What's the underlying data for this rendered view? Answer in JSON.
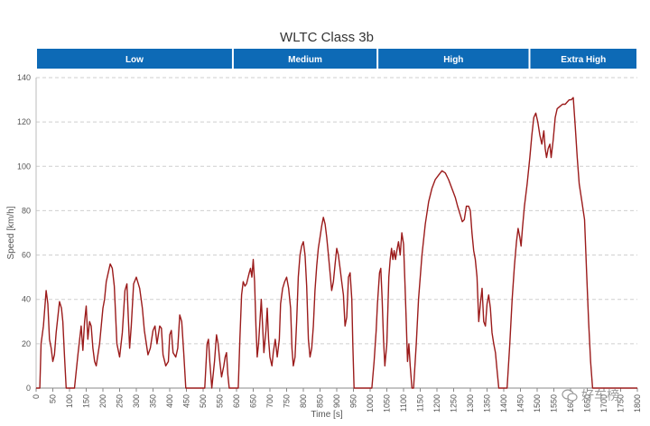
{
  "chart_data": {
    "type": "line",
    "title": "WLTC Class 3b",
    "xlabel": "Time [s]",
    "ylabel": "Speed [km/h]",
    "xlim": [
      0,
      1800
    ],
    "ylim": [
      0,
      140
    ],
    "grid": true,
    "colors": {
      "line": "#9b1b1b",
      "phase_bar": "#0d6ab6",
      "grid": "#cfcfcf",
      "axis_text": "#555555"
    },
    "x_ticks": [
      0,
      50,
      100,
      150,
      200,
      250,
      300,
      350,
      400,
      450,
      500,
      550,
      600,
      650,
      700,
      750,
      800,
      850,
      900,
      950,
      1000,
      1050,
      1100,
      1150,
      1200,
      1250,
      1300,
      1350,
      1400,
      1450,
      1500,
      1550,
      1600,
      1650,
      1700,
      1750,
      1800
    ],
    "y_ticks": [
      0,
      20,
      40,
      60,
      80,
      100,
      120,
      140
    ],
    "phases": [
      {
        "name": "Low",
        "start": 0,
        "end": 589
      },
      {
        "name": "Medium",
        "start": 589,
        "end": 1022
      },
      {
        "name": "High",
        "start": 1022,
        "end": 1477
      },
      {
        "name": "Extra High",
        "start": 1477,
        "end": 1800
      }
    ],
    "series": [
      {
        "points": [
          [
            0,
            0
          ],
          [
            11,
            0
          ],
          [
            15,
            20
          ],
          [
            22,
            28
          ],
          [
            30,
            44
          ],
          [
            35,
            38
          ],
          [
            40,
            22
          ],
          [
            45,
            18
          ],
          [
            50,
            12
          ],
          [
            55,
            15
          ],
          [
            60,
            25
          ],
          [
            70,
            39
          ],
          [
            76,
            36
          ],
          [
            80,
            30
          ],
          [
            85,
            14
          ],
          [
            90,
            0
          ],
          [
            115,
            0
          ],
          [
            125,
            15
          ],
          [
            135,
            28
          ],
          [
            140,
            17
          ],
          [
            145,
            30
          ],
          [
            150,
            37
          ],
          [
            155,
            22
          ],
          [
            160,
            30
          ],
          [
            165,
            28
          ],
          [
            170,
            18
          ],
          [
            175,
            12
          ],
          [
            180,
            10
          ],
          [
            190,
            20
          ],
          [
            200,
            36
          ],
          [
            205,
            40
          ],
          [
            210,
            48
          ],
          [
            216,
            52
          ],
          [
            222,
            56
          ],
          [
            228,
            54
          ],
          [
            234,
            46
          ],
          [
            242,
            20
          ],
          [
            250,
            14
          ],
          [
            258,
            25
          ],
          [
            266,
            44
          ],
          [
            272,
            47
          ],
          [
            276,
            32
          ],
          [
            280,
            18
          ],
          [
            285,
            28
          ],
          [
            292,
            47
          ],
          [
            300,
            50
          ],
          [
            310,
            45
          ],
          [
            318,
            36
          ],
          [
            324,
            26
          ],
          [
            330,
            20
          ],
          [
            335,
            15
          ],
          [
            342,
            18
          ],
          [
            350,
            26
          ],
          [
            356,
            28
          ],
          [
            362,
            20
          ],
          [
            370,
            28
          ],
          [
            375,
            27
          ],
          [
            380,
            15
          ],
          [
            388,
            10
          ],
          [
            396,
            12
          ],
          [
            400,
            24
          ],
          [
            405,
            26
          ],
          [
            410,
            16
          ],
          [
            418,
            14
          ],
          [
            424,
            18
          ],
          [
            430,
            33
          ],
          [
            436,
            30
          ],
          [
            442,
            16
          ],
          [
            448,
            0
          ],
          [
            505,
            0
          ],
          [
            512,
            20
          ],
          [
            516,
            22
          ],
          [
            520,
            12
          ],
          [
            526,
            0
          ],
          [
            534,
            12
          ],
          [
            540,
            24
          ],
          [
            545,
            20
          ],
          [
            550,
            12
          ],
          [
            555,
            5
          ],
          [
            562,
            10
          ],
          [
            566,
            14
          ],
          [
            570,
            16
          ],
          [
            574,
            6
          ],
          [
            578,
            0
          ],
          [
            605,
            0
          ],
          [
            610,
            22
          ],
          [
            615,
            42
          ],
          [
            620,
            48
          ],
          [
            625,
            46
          ],
          [
            630,
            47
          ],
          [
            638,
            52
          ],
          [
            642,
            54
          ],
          [
            646,
            50
          ],
          [
            650,
            58
          ],
          [
            654,
            48
          ],
          [
            658,
            28
          ],
          [
            662,
            14
          ],
          [
            666,
            20
          ],
          [
            670,
            30
          ],
          [
            674,
            40
          ],
          [
            678,
            28
          ],
          [
            682,
            16
          ],
          [
            688,
            26
          ],
          [
            692,
            36
          ],
          [
            696,
            22
          ],
          [
            700,
            14
          ],
          [
            706,
            10
          ],
          [
            710,
            16
          ],
          [
            716,
            22
          ],
          [
            722,
            14
          ],
          [
            728,
            22
          ],
          [
            732,
            38
          ],
          [
            738,
            45
          ],
          [
            744,
            48
          ],
          [
            750,
            50
          ],
          [
            756,
            45
          ],
          [
            762,
            36
          ],
          [
            766,
            18
          ],
          [
            770,
            10
          ],
          [
            775,
            14
          ],
          [
            780,
            30
          ],
          [
            785,
            50
          ],
          [
            790,
            60
          ],
          [
            795,
            64
          ],
          [
            800,
            66
          ],
          [
            805,
            60
          ],
          [
            810,
            46
          ],
          [
            815,
            22
          ],
          [
            820,
            14
          ],
          [
            825,
            18
          ],
          [
            830,
            28
          ],
          [
            835,
            44
          ],
          [
            840,
            55
          ],
          [
            845,
            63
          ],
          [
            850,
            68
          ],
          [
            855,
            73
          ],
          [
            860,
            77
          ],
          [
            865,
            74
          ],
          [
            870,
            68
          ],
          [
            875,
            60
          ],
          [
            880,
            52
          ],
          [
            885,
            44
          ],
          [
            890,
            48
          ],
          [
            895,
            56
          ],
          [
            900,
            63
          ],
          [
            905,
            60
          ],
          [
            910,
            54
          ],
          [
            915,
            48
          ],
          [
            920,
            42
          ],
          [
            925,
            28
          ],
          [
            930,
            32
          ],
          [
            935,
            50
          ],
          [
            940,
            52
          ],
          [
            945,
            40
          ],
          [
            948,
            20
          ],
          [
            952,
            0
          ],
          [
            1005,
            0
          ],
          [
            1012,
            12
          ],
          [
            1018,
            26
          ],
          [
            1022,
            38
          ],
          [
            1028,
            52
          ],
          [
            1032,
            54
          ],
          [
            1036,
            40
          ],
          [
            1040,
            22
          ],
          [
            1044,
            10
          ],
          [
            1050,
            20
          ],
          [
            1056,
            50
          ],
          [
            1060,
            58
          ],
          [
            1064,
            63
          ],
          [
            1068,
            58
          ],
          [
            1072,
            62
          ],
          [
            1076,
            58
          ],
          [
            1080,
            62
          ],
          [
            1085,
            66
          ],
          [
            1090,
            60
          ],
          [
            1095,
            70
          ],
          [
            1100,
            65
          ],
          [
            1104,
            48
          ],
          [
            1108,
            30
          ],
          [
            1112,
            12
          ],
          [
            1116,
            20
          ],
          [
            1120,
            10
          ],
          [
            1125,
            0
          ],
          [
            1130,
            0
          ],
          [
            1138,
            20
          ],
          [
            1145,
            40
          ],
          [
            1155,
            60
          ],
          [
            1165,
            74
          ],
          [
            1175,
            84
          ],
          [
            1185,
            90
          ],
          [
            1195,
            94
          ],
          [
            1205,
            96
          ],
          [
            1215,
            98
          ],
          [
            1225,
            97
          ],
          [
            1235,
            94
          ],
          [
            1245,
            90
          ],
          [
            1255,
            86
          ],
          [
            1262,
            82
          ],
          [
            1270,
            78
          ],
          [
            1276,
            75
          ],
          [
            1282,
            76
          ],
          [
            1288,
            82
          ],
          [
            1295,
            82
          ],
          [
            1300,
            80
          ],
          [
            1305,
            70
          ],
          [
            1310,
            62
          ],
          [
            1315,
            58
          ],
          [
            1320,
            50
          ],
          [
            1325,
            30
          ],
          [
            1330,
            38
          ],
          [
            1335,
            45
          ],
          [
            1340,
            30
          ],
          [
            1345,
            28
          ],
          [
            1350,
            38
          ],
          [
            1355,
            42
          ],
          [
            1360,
            36
          ],
          [
            1365,
            25
          ],
          [
            1370,
            20
          ],
          [
            1375,
            16
          ],
          [
            1380,
            8
          ],
          [
            1385,
            0
          ],
          [
            1410,
            0
          ],
          [
            1418,
            20
          ],
          [
            1425,
            40
          ],
          [
            1432,
            55
          ],
          [
            1438,
            66
          ],
          [
            1443,
            72
          ],
          [
            1448,
            68
          ],
          [
            1452,
            64
          ],
          [
            1456,
            72
          ],
          [
            1462,
            82
          ],
          [
            1470,
            92
          ],
          [
            1478,
            104
          ],
          [
            1484,
            114
          ],
          [
            1490,
            122
          ],
          [
            1496,
            124
          ],
          [
            1502,
            120
          ],
          [
            1508,
            114
          ],
          [
            1514,
            110
          ],
          [
            1520,
            116
          ],
          [
            1524,
            108
          ],
          [
            1528,
            104
          ],
          [
            1533,
            108
          ],
          [
            1538,
            110
          ],
          [
            1542,
            104
          ],
          [
            1548,
            112
          ],
          [
            1554,
            122
          ],
          [
            1560,
            126
          ],
          [
            1568,
            127
          ],
          [
            1576,
            128
          ],
          [
            1584,
            128
          ],
          [
            1590,
            129
          ],
          [
            1596,
            130
          ],
          [
            1602,
            130
          ],
          [
            1608,
            131
          ],
          [
            1614,
            118
          ],
          [
            1620,
            104
          ],
          [
            1626,
            92
          ],
          [
            1634,
            84
          ],
          [
            1642,
            76
          ],
          [
            1648,
            52
          ],
          [
            1654,
            30
          ],
          [
            1660,
            12
          ],
          [
            1666,
            0
          ],
          [
            1800,
            0
          ]
        ]
      }
    ]
  },
  "watermark": {
    "text": "好车榜"
  }
}
